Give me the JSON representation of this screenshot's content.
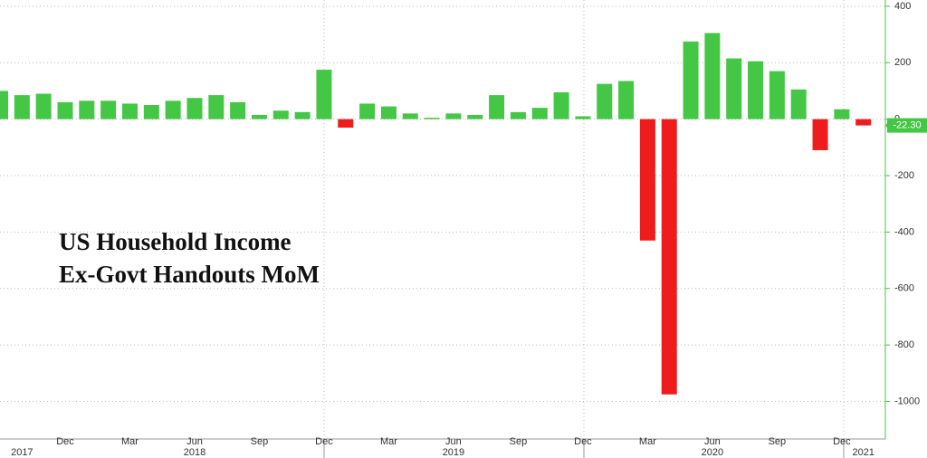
{
  "chart_data": {
    "type": "bar",
    "title_lines": [
      "US Household Income",
      "Ex-Govt Handouts MoM"
    ],
    "categories": [
      null,
      null,
      null,
      "Dec",
      null,
      null,
      "Mar",
      null,
      null,
      "Jun",
      null,
      null,
      "Sep",
      null,
      null,
      "Dec",
      null,
      null,
      "Mar",
      null,
      null,
      "Jun",
      null,
      null,
      "Sep",
      null,
      null,
      "Dec",
      null,
      null,
      "Mar",
      null,
      null,
      "Jun",
      null,
      null,
      "Sep",
      null,
      null,
      "Dec",
      null
    ],
    "year_labels": [
      null,
      "2017",
      null,
      null,
      null,
      null,
      null,
      null,
      null,
      "2018",
      null,
      null,
      null,
      null,
      null,
      null,
      null,
      null,
      null,
      null,
      null,
      "2019",
      null,
      null,
      null,
      null,
      null,
      null,
      null,
      null,
      null,
      null,
      null,
      "2020",
      null,
      null,
      null,
      null,
      null,
      null,
      "2021"
    ],
    "values": [
      100,
      85,
      90,
      60,
      65,
      65,
      55,
      50,
      65,
      75,
      85,
      60,
      15,
      30,
      25,
      175,
      -30,
      55,
      45,
      20,
      5,
      20,
      15,
      85,
      25,
      40,
      95,
      10,
      125,
      135,
      -430,
      -975,
      275,
      305,
      215,
      205,
      170,
      105,
      -110,
      35,
      -22.3
    ],
    "value_labels": [
      null,
      null,
      null,
      null,
      null,
      null,
      null,
      null,
      null,
      null,
      null,
      null,
      null,
      null,
      null,
      null,
      null,
      null,
      null,
      null,
      null,
      null,
      null,
      null,
      null,
      null,
      null,
      null,
      null,
      null,
      null,
      null,
      null,
      null,
      null,
      null,
      null,
      null,
      null,
      null,
      "-22.30"
    ],
    "positive_color": "#44c744",
    "negative_color": "#ee1c1c",
    "ylim": [
      -1133,
      422
    ],
    "yticks": [
      400,
      200,
      0,
      -200,
      -400,
      -600,
      -800,
      -1000
    ],
    "grid": true
  }
}
